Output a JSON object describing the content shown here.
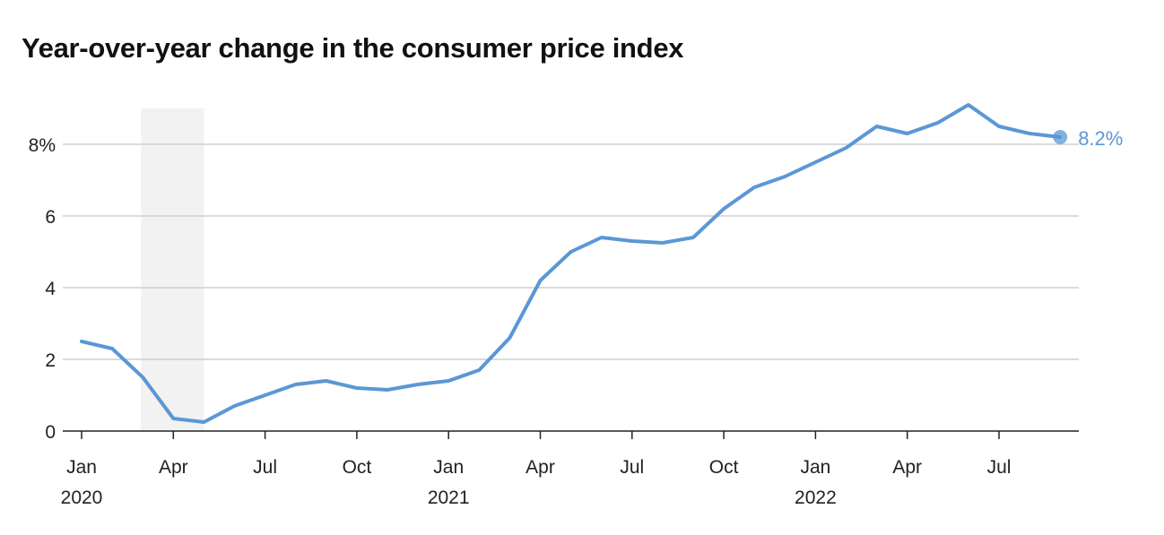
{
  "chart_data": {
    "type": "line",
    "title": "Year-over-year change in the consumer price index",
    "xlabel": "",
    "ylabel": "",
    "ylim": [
      0,
      9
    ],
    "grid": true,
    "y_ticks": [
      0,
      2,
      4,
      6,
      8
    ],
    "y_tick_labels": [
      "0",
      "2",
      "4",
      "6",
      "8%"
    ],
    "x_ticks": [
      {
        "date": "2020-01",
        "label": "Jan",
        "year": "2020"
      },
      {
        "date": "2020-04",
        "label": "Apr"
      },
      {
        "date": "2020-07",
        "label": "Jul"
      },
      {
        "date": "2020-10",
        "label": "Oct"
      },
      {
        "date": "2021-01",
        "label": "Jan",
        "year": "2021"
      },
      {
        "date": "2021-04",
        "label": "Apr"
      },
      {
        "date": "2021-07",
        "label": "Jul"
      },
      {
        "date": "2021-10",
        "label": "Oct"
      },
      {
        "date": "2022-01",
        "label": "Jan",
        "year": "2022"
      },
      {
        "date": "2022-04",
        "label": "Apr"
      },
      {
        "date": "2022-07",
        "label": "Jul"
      }
    ],
    "shaded_range": [
      "2020-03",
      "2020-05"
    ],
    "color": "#5b97d5",
    "shade_color": "#f2f2f2",
    "end_label": "8.2%",
    "x": [
      "2020-01",
      "2020-02",
      "2020-03",
      "2020-04",
      "2020-05",
      "2020-06",
      "2020-07",
      "2020-08",
      "2020-09",
      "2020-10",
      "2020-11",
      "2020-12",
      "2021-01",
      "2021-02",
      "2021-03",
      "2021-04",
      "2021-05",
      "2021-06",
      "2021-07",
      "2021-08",
      "2021-09",
      "2021-10",
      "2021-11",
      "2021-12",
      "2022-01",
      "2022-02",
      "2022-03",
      "2022-04",
      "2022-05",
      "2022-06",
      "2022-07",
      "2022-08",
      "2022-09"
    ],
    "values": [
      2.5,
      2.3,
      1.5,
      0.35,
      0.25,
      0.7,
      1.0,
      1.3,
      1.4,
      1.2,
      1.15,
      1.3,
      1.4,
      1.7,
      2.6,
      4.2,
      5.0,
      5.4,
      5.3,
      5.25,
      5.4,
      6.2,
      6.8,
      7.1,
      7.5,
      7.9,
      8.5,
      8.3,
      8.6,
      9.1,
      8.5,
      8.3,
      8.2
    ]
  }
}
